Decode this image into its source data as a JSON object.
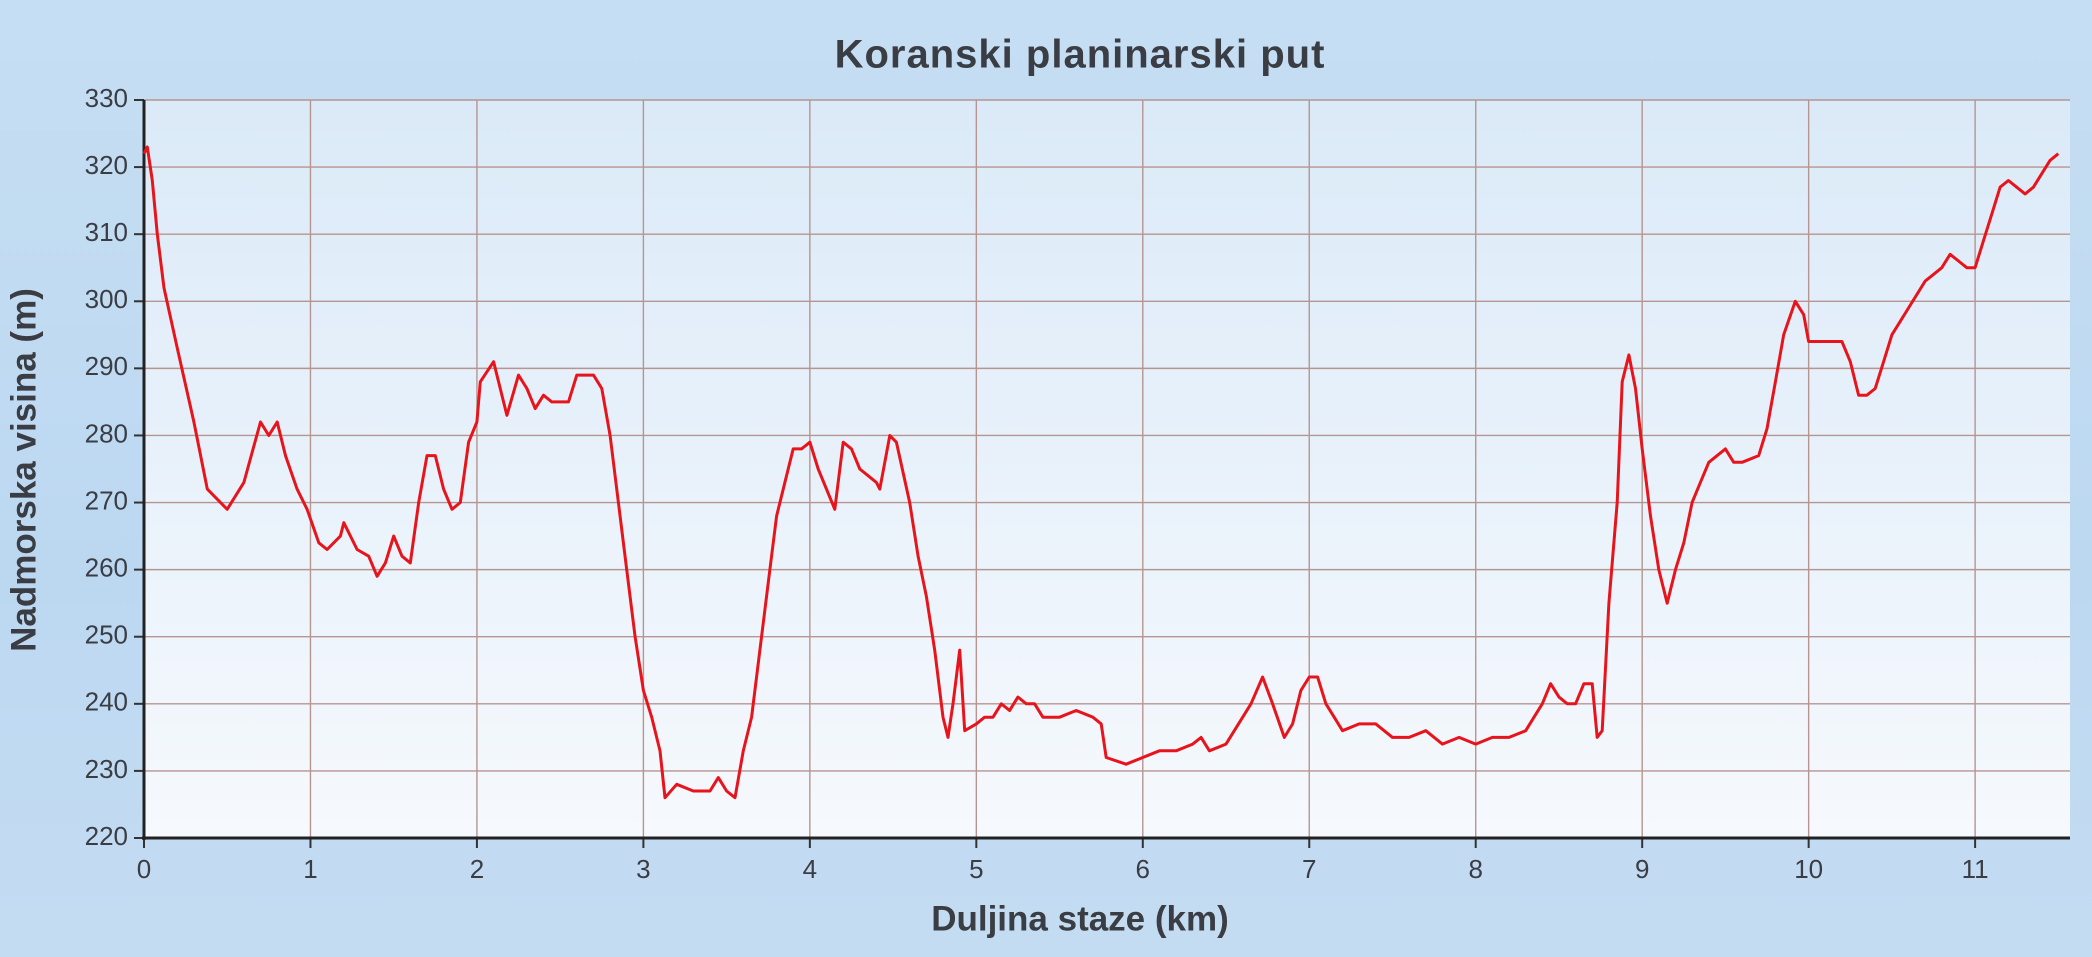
{
  "chart_data": {
    "type": "line",
    "title": "Koranski planinarski put",
    "xlabel": "Duljina staze (km)",
    "ylabel": "Nadmorska visina (m)",
    "color": "#e8141c",
    "grid": true,
    "xlim": [
      0,
      11.57
    ],
    "ylim": [
      220,
      330
    ],
    "xticks": [
      0,
      1,
      2,
      3,
      4,
      5,
      6,
      7,
      8,
      9,
      10,
      11
    ],
    "yticks": [
      220,
      230,
      240,
      250,
      260,
      270,
      280,
      290,
      300,
      310,
      320,
      330
    ],
    "x": [
      0,
      0.02,
      0.05,
      0.08,
      0.12,
      0.2,
      0.3,
      0.38,
      0.42,
      0.5,
      0.6,
      0.7,
      0.75,
      0.8,
      0.85,
      0.92,
      0.98,
      1.05,
      1.1,
      1.18,
      1.2,
      1.28,
      1.35,
      1.4,
      1.45,
      1.5,
      1.55,
      1.6,
      1.65,
      1.7,
      1.75,
      1.8,
      1.85,
      1.9,
      1.95,
      2.0,
      2.02,
      2.1,
      2.15,
      2.18,
      2.25,
      2.3,
      2.35,
      2.4,
      2.45,
      2.5,
      2.55,
      2.6,
      2.7,
      2.75,
      2.8,
      2.85,
      2.9,
      2.95,
      3.0,
      3.05,
      3.1,
      3.13,
      3.2,
      3.3,
      3.4,
      3.45,
      3.5,
      3.55,
      3.6,
      3.65,
      3.7,
      3.75,
      3.8,
      3.85,
      3.9,
      3.95,
      4.0,
      4.05,
      4.15,
      4.2,
      4.25,
      4.3,
      4.4,
      4.42,
      4.48,
      4.52,
      4.6,
      4.65,
      4.7,
      4.75,
      4.8,
      4.83,
      4.86,
      4.9,
      4.93,
      5.0,
      5.05,
      5.1,
      5.15,
      5.2,
      5.25,
      5.3,
      5.35,
      5.4,
      5.5,
      5.6,
      5.7,
      5.75,
      5.78,
      5.9,
      6.0,
      6.1,
      6.2,
      6.3,
      6.35,
      6.4,
      6.5,
      6.55,
      6.65,
      6.72,
      6.78,
      6.85,
      6.9,
      6.95,
      7.0,
      7.05,
      7.1,
      7.15,
      7.2,
      7.3,
      7.4,
      7.5,
      7.6,
      7.7,
      7.8,
      7.9,
      8.0,
      8.1,
      8.2,
      8.3,
      8.35,
      8.4,
      8.45,
      8.5,
      8.55,
      8.6,
      8.65,
      8.7,
      8.73,
      8.76,
      8.8,
      8.85,
      8.88,
      8.92,
      8.96,
      9.0,
      9.05,
      9.1,
      9.15,
      9.2,
      9.25,
      9.3,
      9.35,
      9.4,
      9.5,
      9.55,
      9.6,
      9.7,
      9.75,
      9.8,
      9.85,
      9.92,
      9.97,
      10.0,
      10.05,
      10.1,
      10.2,
      10.25,
      10.3,
      10.35,
      10.4,
      10.45,
      10.5,
      10.55,
      10.6,
      10.7,
      10.75,
      10.8,
      10.85,
      10.9,
      10.95,
      11.0,
      11.05,
      11.1,
      11.15,
      11.2,
      11.25,
      11.3,
      11.35,
      11.4,
      11.45,
      11.5
    ],
    "values": [
      322,
      323,
      318,
      310,
      302,
      293,
      282,
      272,
      271,
      269,
      273,
      282,
      280,
      282,
      277,
      272,
      269,
      264,
      263,
      265,
      267,
      263,
      262,
      259,
      261,
      265,
      262,
      261,
      270,
      277,
      277,
      272,
      269,
      270,
      279,
      282,
      288,
      291,
      286,
      283,
      289,
      287,
      284,
      286,
      285,
      285,
      285,
      289,
      289,
      287,
      280,
      270,
      260,
      250,
      242,
      238,
      233,
      226,
      228,
      227,
      227,
      229,
      227,
      226,
      233,
      238,
      248,
      258,
      268,
      273,
      278,
      278,
      279,
      275,
      269,
      279,
      278,
      275,
      273,
      272,
      280,
      279,
      270,
      262,
      256,
      248,
      238,
      235,
      240,
      248,
      236,
      237,
      238,
      238,
      240,
      239,
      241,
      240,
      240,
      238,
      238,
      239,
      238,
      237,
      232,
      231,
      232,
      233,
      233,
      234,
      235,
      233,
      234,
      236,
      240,
      244,
      240,
      235,
      237,
      242,
      244,
      244,
      240,
      238,
      236,
      237,
      237,
      235,
      235,
      236,
      234,
      235,
      234,
      235,
      235,
      236,
      238,
      240,
      243,
      241,
      240,
      240,
      243,
      243,
      235,
      236,
      255,
      270,
      288,
      292,
      287,
      278,
      268,
      260,
      255,
      260,
      264,
      270,
      273,
      276,
      278,
      276,
      276,
      277,
      281,
      288,
      295,
      300,
      298,
      294,
      294,
      294,
      294,
      291,
      286,
      286,
      287,
      291,
      295,
      297,
      299,
      303,
      304,
      305,
      307,
      306,
      305,
      305,
      309,
      313,
      317,
      318,
      317,
      316,
      317,
      319,
      321,
      322
    ]
  }
}
